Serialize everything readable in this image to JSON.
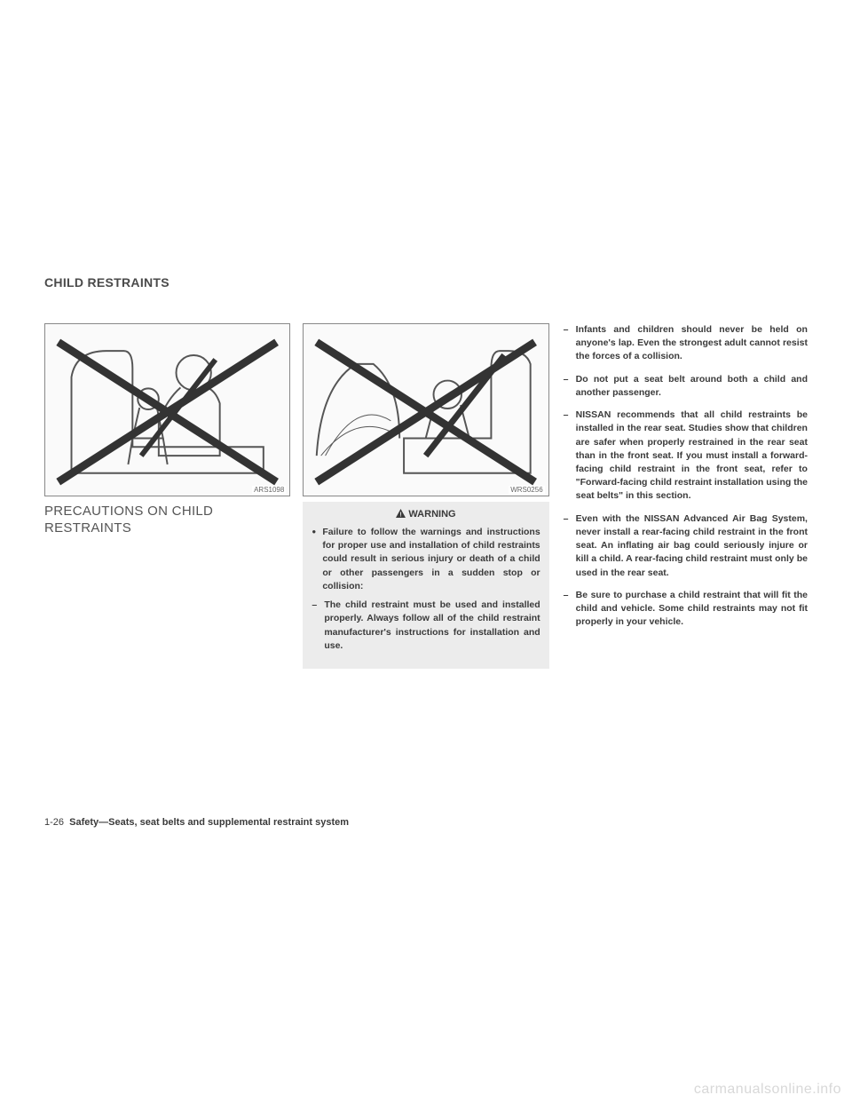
{
  "section_header": "CHILD RESTRAINTS",
  "col1": {
    "figure_code": "ARS1098",
    "subheading_line1": "PRECAUTIONS ON CHILD",
    "subheading_line2": "RESTRAINTS"
  },
  "col2": {
    "figure_code": "WRS0256",
    "warning_label": "WARNING",
    "bullet_text": "Failure to follow the warnings and instructions for proper use and installation of child restraints could result in serious injury or death of a child or other passengers in a sudden stop or collision:",
    "dash_items": [
      "The child restraint must be used and installed properly. Always follow all of the child restraint manufacturer's instructions for installation and use."
    ]
  },
  "col3": {
    "items": [
      "Infants and children should never be held on anyone's lap. Even the strongest adult cannot resist the forces of a collision.",
      "Do not put a seat belt around both a child and another passenger.",
      "NISSAN recommends that all child restraints be installed in the rear seat. Studies show that children are safer when properly restrained in the rear seat than in the front seat. If you must install a forward-facing child restraint in the front seat, refer to \"Forward-facing child restraint installation using the seat belts\" in this section.",
      "Even with the NISSAN Advanced Air Bag System, never install a rear-facing child restraint in the front seat. An inflating air bag could seriously injure or kill a child. A rear-facing child restraint must only be used in the rear seat.",
      "Be sure to purchase a child restraint that will fit the child and vehicle. Some child restraints may not fit properly in your vehicle."
    ]
  },
  "footer": {
    "page_number": "1-26",
    "chapter": "Safety—Seats, seat belts and supplemental restraint system"
  },
  "watermark": "carmanualsonline.info",
  "colors": {
    "text": "#4a4a4a",
    "box_bg": "#ececec",
    "watermark": "#d8d8d8",
    "figure_border": "#888888"
  }
}
